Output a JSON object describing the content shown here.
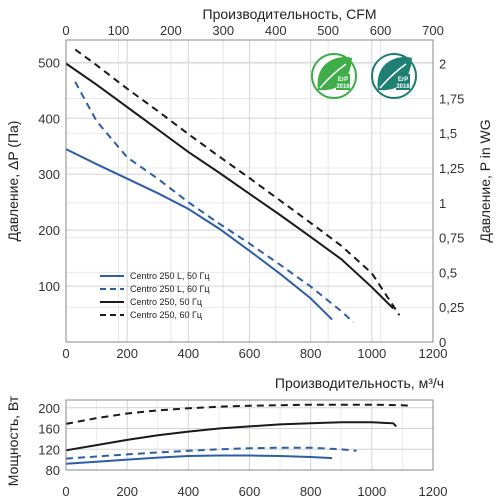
{
  "chart_data": [
    {
      "type": "line",
      "x_unit_values": [
        0,
        200,
        400,
        600,
        800,
        1000,
        1200
      ],
      "top_axis": {
        "label": "Производительность, CFM",
        "ticks": [
          "0",
          "100",
          "200",
          "300",
          "400",
          "500",
          "600",
          "700"
        ],
        "range": [
          0,
          700
        ]
      },
      "bottom_axis": {
        "label": "",
        "ticks": [
          "0",
          "200",
          "400",
          "600",
          "800",
          "1000",
          "1200"
        ],
        "range": [
          0,
          1200
        ]
      },
      "left_axis": {
        "label": "Давление, ΔP (Па)",
        "ticks": [
          "100",
          "200",
          "300",
          "400",
          "500"
        ],
        "range": [
          0,
          540
        ]
      },
      "right_axis": {
        "label": "Давление,  P in WG",
        "ticks": [
          "0",
          "0,25",
          "0,5",
          "0,75",
          "1",
          "1,25",
          "1,5",
          "1,75",
          "2"
        ],
        "range": [
          0,
          2.17
        ]
      },
      "grid": true,
      "legend_position": "bottom-left",
      "series": [
        {
          "name": "Centro 250 L, 50 Гц",
          "color": "#2e5ea8",
          "dash": "solid",
          "x": [
            0,
            100,
            200,
            300,
            400,
            500,
            600,
            700,
            800,
            870
          ],
          "y": [
            345,
            318,
            292,
            266,
            238,
            203,
            163,
            122,
            78,
            40
          ]
        },
        {
          "name": "Centro 250 L, 60 Гц",
          "color": "#2e5ea8",
          "dash": "dashed",
          "x": [
            30,
            100,
            200,
            300,
            400,
            500,
            600,
            700,
            800,
            900,
            940
          ],
          "y": [
            465,
            395,
            330,
            292,
            250,
            212,
            176,
            138,
            99,
            55,
            35
          ]
        },
        {
          "name": "Centro 250, 50 Гц",
          "color": "#1a1a1a",
          "dash": "solid",
          "x": [
            0,
            100,
            200,
            300,
            400,
            500,
            600,
            700,
            800,
            900,
            1000,
            1070
          ],
          "y": [
            498,
            460,
            420,
            380,
            340,
            303,
            265,
            227,
            188,
            148,
            98,
            60
          ]
        },
        {
          "name": "Centro 250, 60 Гц",
          "color": "#1a1a1a",
          "dash": "dashed",
          "x": [
            30,
            100,
            200,
            300,
            400,
            500,
            600,
            700,
            800,
            900,
            1000,
            1090
          ],
          "y": [
            523,
            495,
            453,
            413,
            372,
            332,
            293,
            253,
            213,
            172,
            123,
            48
          ]
        }
      ],
      "badges": [
        {
          "text_top": "ErP",
          "text_bottom": "2016",
          "color": "#3fae49"
        },
        {
          "text_top": "ErP",
          "text_bottom": "2018",
          "color": "#1f7f73"
        }
      ]
    },
    {
      "type": "line",
      "x_axis": {
        "label": "Производительность, м³/ч",
        "ticks": [
          "0",
          "200",
          "400",
          "600",
          "800",
          "1000",
          "1200"
        ],
        "range": [
          0,
          1200
        ]
      },
      "y_axis": {
        "label": "Мощность, Вт",
        "ticks": [
          "80",
          "120",
          "160",
          "200"
        ],
        "range": [
          80,
          215
        ]
      },
      "grid": true,
      "series": [
        {
          "name": "Centro 250 L, 50 Гц",
          "color": "#2e5ea8",
          "dash": "solid",
          "x": [
            0,
            100,
            200,
            300,
            400,
            500,
            600,
            700,
            800,
            870
          ],
          "y": [
            92,
            96,
            100,
            104,
            107,
            108,
            108,
            107,
            105,
            103
          ]
        },
        {
          "name": "Centro 250 L, 60 Гц",
          "color": "#2e5ea8",
          "dash": "dashed",
          "x": [
            0,
            100,
            200,
            300,
            400,
            500,
            600,
            700,
            800,
            900,
            950
          ],
          "y": [
            102,
            106,
            110,
            114,
            117,
            120,
            122,
            123,
            123,
            120,
            117
          ]
        },
        {
          "name": "Centro 250, 50 Гц",
          "color": "#1a1a1a",
          "dash": "solid",
          "x": [
            0,
            100,
            200,
            300,
            400,
            500,
            600,
            700,
            800,
            900,
            1000,
            1070,
            1080
          ],
          "y": [
            118,
            128,
            138,
            147,
            154,
            160,
            164,
            168,
            170,
            172,
            172,
            170,
            164
          ]
        },
        {
          "name": "Centro 250, 60 Гц",
          "color": "#1a1a1a",
          "dash": "dashed",
          "x": [
            0,
            100,
            200,
            300,
            400,
            500,
            600,
            700,
            800,
            900,
            1000,
            1100,
            1120
          ],
          "y": [
            169,
            180,
            189,
            195,
            199,
            202,
            204,
            205,
            206,
            206,
            206,
            205,
            204
          ]
        }
      ]
    }
  ]
}
